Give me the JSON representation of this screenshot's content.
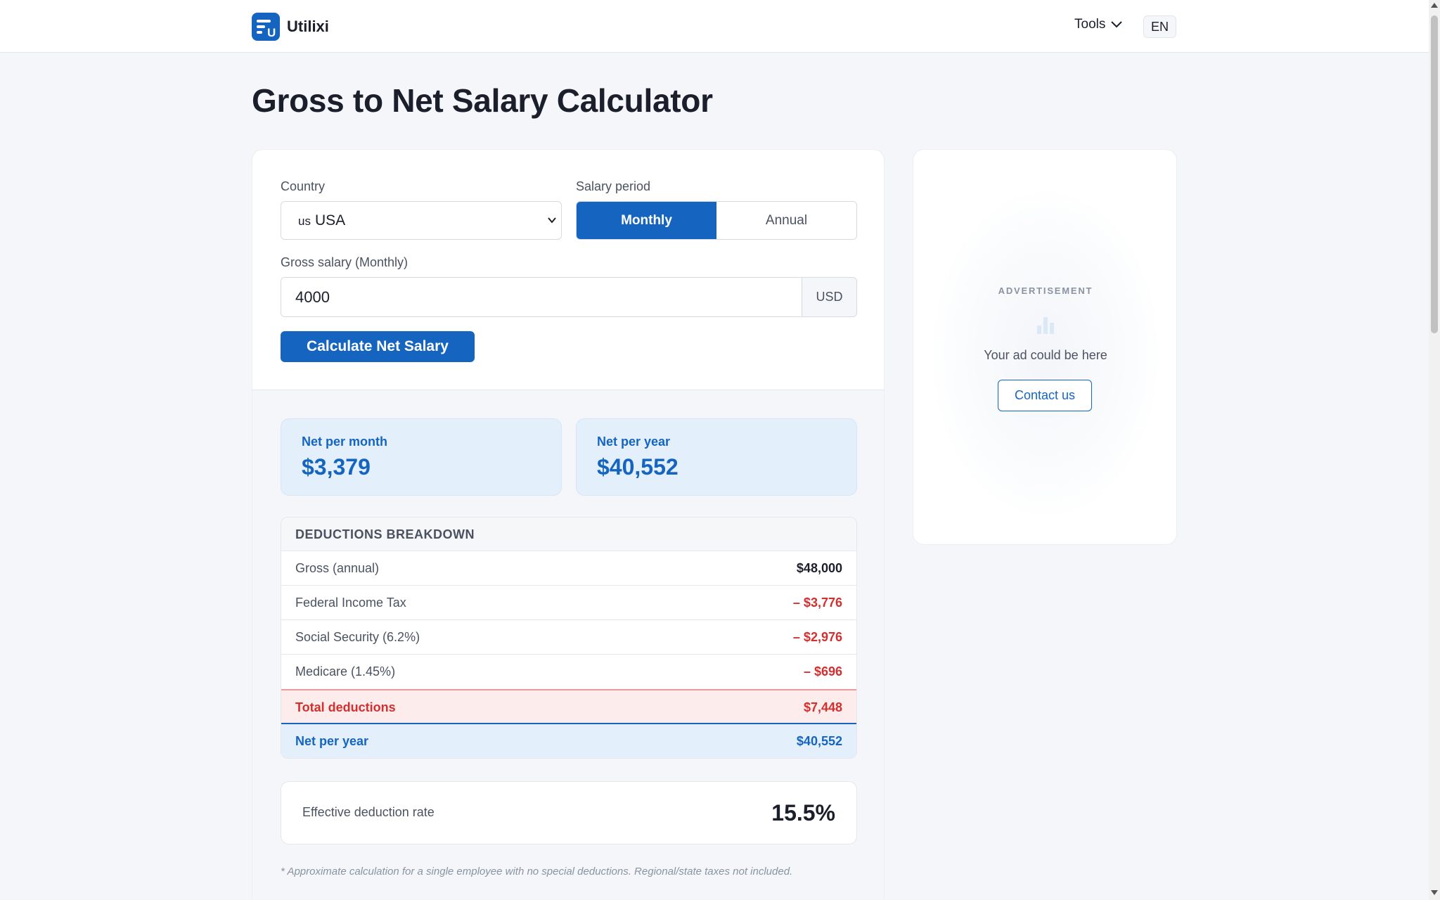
{
  "header": {
    "brand_name": "Utilixi",
    "tools_label": "Tools",
    "language": "EN"
  },
  "page_title": "Gross to Net Salary Calculator",
  "form": {
    "country_label": "Country",
    "country_flag": "us",
    "country_value": "USA",
    "period_label": "Salary period",
    "period_options": [
      "Monthly",
      "Annual"
    ],
    "period_selected": "Monthly",
    "gross_label": "Gross salary (Monthly)",
    "gross_value": "4000",
    "currency": "USD",
    "calculate_label": "Calculate Net Salary"
  },
  "results": {
    "net_month_label": "Net per month",
    "net_month_value": "$3,379",
    "net_year_label": "Net per year",
    "net_year_value": "$40,552"
  },
  "breakdown": {
    "title": "DEDUCTIONS BREAKDOWN",
    "rows": [
      {
        "label": "Gross (annual)",
        "value": "$48,000"
      },
      {
        "label": "Federal Income Tax",
        "value": "– $3,776"
      },
      {
        "label": "Social Security (6.2%)",
        "value": "– $2,976"
      },
      {
        "label": "Medicare (1.45%)",
        "value": "– $696"
      }
    ],
    "total_label": "Total deductions",
    "total_value": "$7,448",
    "net_label": "Net per year",
    "net_value": "$40,552"
  },
  "rate": {
    "label": "Effective deduction rate",
    "value": "15.5%"
  },
  "footnote": "* Approximate calculation for a single employee with no special deductions. Regional/state taxes not included.",
  "ad": {
    "label": "ADVERTISEMENT",
    "text": "Your ad could be here",
    "button": "Contact us"
  },
  "colors": {
    "accent": "#1565c0",
    "negative": "#d32f2f",
    "background": "#f4f6fa"
  },
  "icons": {
    "logo": "utilixi-logo-icon",
    "tools_caret": "chevron-down-icon",
    "select_caret": "chevron-down-icon",
    "ad_icon": "bar-chart-icon"
  }
}
